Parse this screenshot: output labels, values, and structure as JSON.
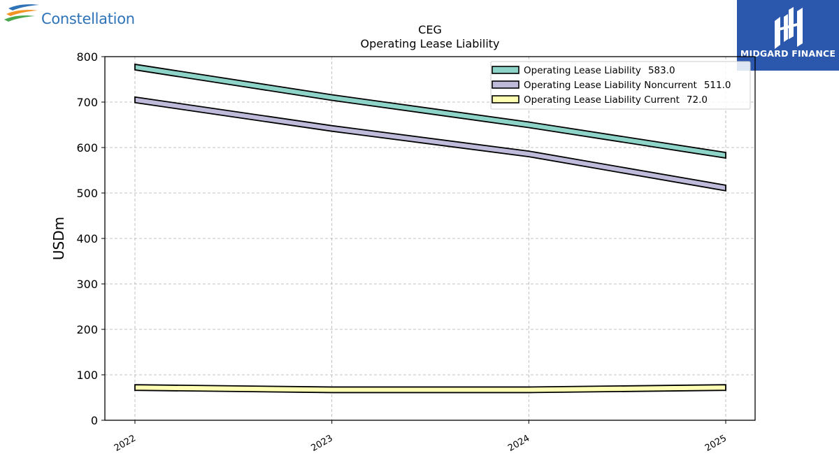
{
  "branding": {
    "company_logo_text": "Constellation",
    "badge_text": "MIDGARD FINANCE"
  },
  "colors": {
    "series": [
      "#8dd3c7",
      "#bebada",
      "#ffffb3"
    ],
    "logo_blue": "#2f73b7",
    "badge_bg": "#2b57ad"
  },
  "chart_data": {
    "type": "line",
    "title": "CEG",
    "subtitle": "Operating Lease Liability",
    "xlabel": "",
    "ylabel": "USDm",
    "categories": [
      "2022",
      "2023",
      "2024",
      "2025"
    ],
    "ylim": [
      0,
      800
    ],
    "yticks": [
      "0",
      "100",
      "200",
      "300",
      "400",
      "500",
      "600",
      "700",
      "800"
    ],
    "grid": true,
    "legend_placement": "top-right",
    "series": [
      {
        "name": "Operating Lease Liability",
        "legend_value": "583.0",
        "values": [
          777,
          710,
          650,
          583
        ]
      },
      {
        "name": "Operating Lease Liability Noncurrent",
        "legend_value": "511.0",
        "values": [
          705,
          642,
          586,
          511
        ]
      },
      {
        "name": "Operating Lease Liability Current",
        "legend_value": "72.0",
        "values": [
          72,
          67,
          67,
          72
        ]
      }
    ]
  }
}
